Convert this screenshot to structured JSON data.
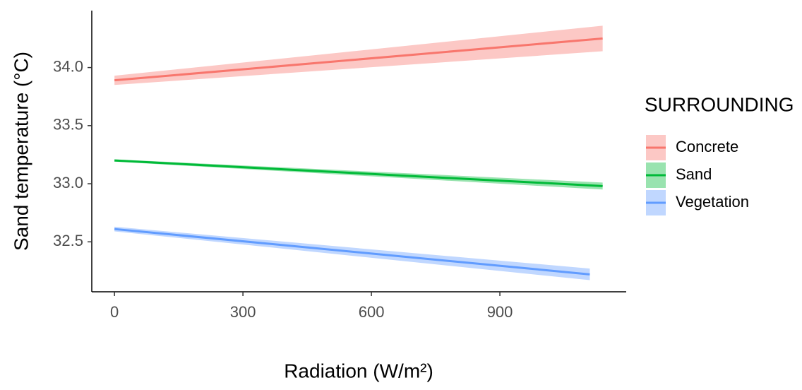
{
  "chart_data": {
    "type": "line",
    "xlabel": "Radiation (W/m²)",
    "ylabel": "Sand temperature (°C)",
    "legend_title": "SURROUNDING",
    "legend_position": "right",
    "grid": false,
    "xlim": [
      -53,
      1195
    ],
    "xticks": [
      0,
      300,
      600,
      900
    ],
    "ylim": [
      32.07,
      34.49
    ],
    "yticks": [
      {
        "value": 34,
        "label": "34.0"
      },
      33.5,
      {
        "value": 33,
        "label": "33.0"
      },
      32.5
    ],
    "series": [
      {
        "name": "Concrete",
        "color": "#F8766D",
        "x": [
          0,
          1140
        ],
        "values": [
          33.89,
          34.25
        ],
        "lower": [
          33.85,
          34.14
        ],
        "upper": [
          33.93,
          34.36
        ]
      },
      {
        "name": "Sand",
        "color": "#00BA38",
        "x": [
          0,
          1140
        ],
        "values": [
          33.2,
          32.98
        ],
        "lower": [
          33.19,
          32.95
        ],
        "upper": [
          33.21,
          33.01
        ]
      },
      {
        "name": "Vegetation",
        "color": "#619CFF",
        "x": [
          0,
          1110
        ],
        "values": [
          32.61,
          32.22
        ],
        "lower": [
          32.59,
          32.17
        ],
        "upper": [
          32.63,
          32.27
        ]
      }
    ]
  }
}
